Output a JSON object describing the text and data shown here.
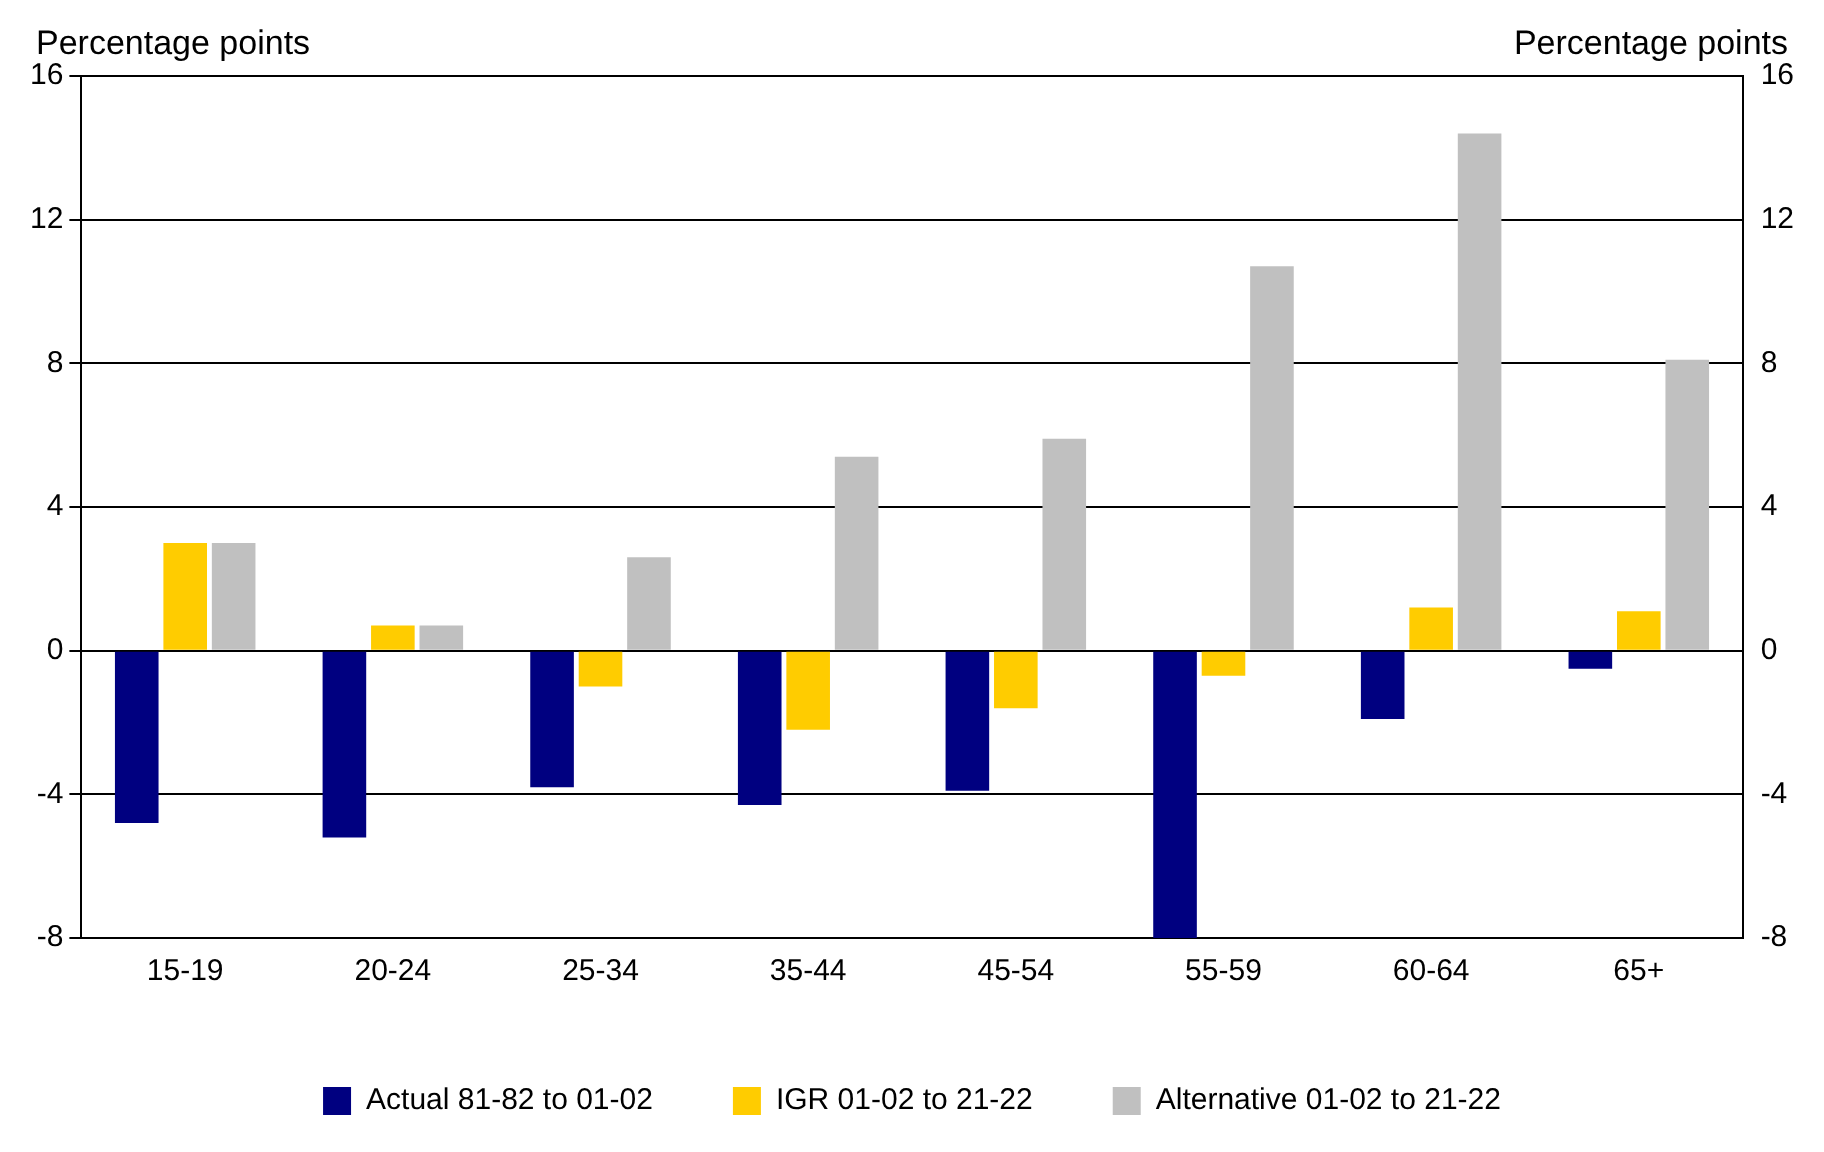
{
  "chart_data": {
    "type": "bar",
    "ylabel": "Percentage points",
    "y2label": "Percentage points",
    "categories": [
      "15-19",
      "20-24",
      "25-34",
      "35-44",
      "45-54",
      "55-59",
      "60-64",
      "65+"
    ],
    "series": [
      {
        "name": "Actual 81-82 to 01-02",
        "color": "#000080",
        "values": [
          -4.8,
          -5.2,
          -3.8,
          -4.3,
          -3.9,
          -8.0,
          -1.9,
          -0.5
        ]
      },
      {
        "name": "IGR 01-02 to 21-22",
        "color": "#ffcc00",
        "values": [
          3.0,
          0.7,
          -1.0,
          -2.2,
          -1.6,
          -0.7,
          1.2,
          1.1
        ]
      },
      {
        "name": "Alternative 01-02 to 21-22",
        "color": "#c0c0c0",
        "values": [
          3.0,
          0.7,
          2.6,
          5.4,
          5.9,
          10.7,
          14.4,
          8.1
        ]
      }
    ],
    "ylim": [
      -8,
      16
    ],
    "yticks": [
      -8,
      -4,
      0,
      4,
      8,
      12,
      16
    ],
    "y2lim": [
      -8,
      16
    ],
    "y2ticks": [
      -8,
      -4,
      0,
      4,
      8,
      12,
      16
    ],
    "grid": "y",
    "legend": "bottom"
  }
}
